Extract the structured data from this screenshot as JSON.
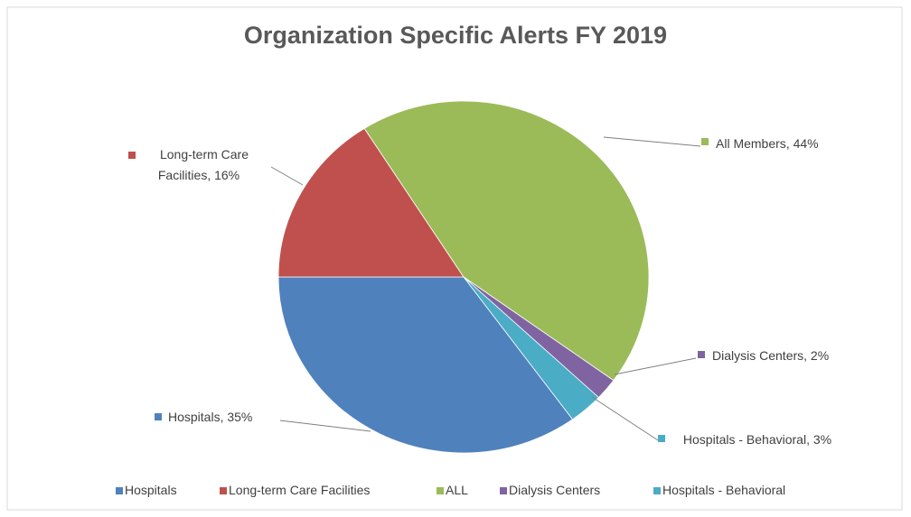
{
  "chart_data": {
    "type": "pie",
    "title": "Organization Specific Alerts FY 2019",
    "categories": [
      "Hospitals",
      "Long-term Care Facilities",
      "ALL",
      "Dialysis Centers",
      "Hospitals - Behavioral"
    ],
    "values": [
      35,
      16,
      44,
      2,
      3
    ],
    "value_labels": [
      "Hospitals, 35%",
      "Long-term Care Facilities, 16%",
      "All Members, 44%",
      "Dialysis Centers, 2%",
      "Hospitals - Behavioral, 3%"
    ],
    "colors": [
      "#4f81bd",
      "#c0504d",
      "#9bbb59",
      "#8064a2",
      "#4bacc6"
    ],
    "legend": "bottom"
  }
}
